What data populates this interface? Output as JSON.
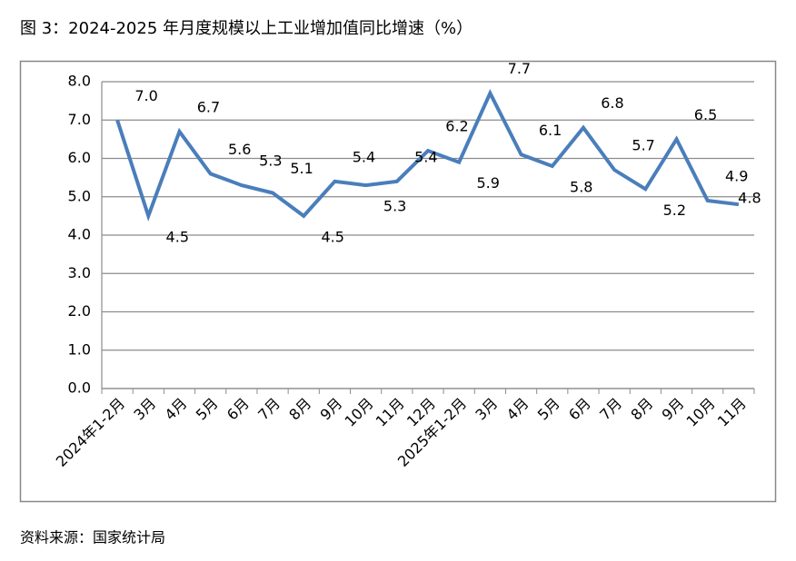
{
  "chart_data": {
    "type": "line",
    "title": "图 3：2024-2025 年月度规模以上工业增加值同比增速（%）",
    "source": "资料来源：国家统计局",
    "categories": [
      "2024年1-2月",
      "3月",
      "4月",
      "5月",
      "6月",
      "7月",
      "8月",
      "9月",
      "10月",
      "11月",
      "12月",
      "2025年1-2月",
      "3月",
      "4月",
      "5月",
      "6月",
      "7月",
      "8月",
      "9月",
      "10月",
      "11月"
    ],
    "values": [
      7.0,
      4.5,
      6.7,
      5.6,
      5.3,
      5.1,
      4.5,
      5.4,
      5.3,
      5.4,
      6.2,
      5.9,
      7.7,
      6.1,
      5.8,
      6.8,
      5.7,
      5.2,
      6.5,
      4.9,
      4.8
    ],
    "value_labels": [
      "7.0",
      "4.5",
      "6.7",
      "5.6",
      "5.3",
      "5.1",
      "4.5",
      "5.4",
      "5.3",
      "5.4",
      "6.2",
      "5.9",
      "7.7",
      "6.1",
      "5.8",
      "6.8",
      "5.7",
      "5.2",
      "6.5",
      "4.9",
      "4.8"
    ],
    "color": "#4a7ebb",
    "ylim": [
      0,
      8
    ],
    "yticks": [
      {
        "value": 0,
        "label": "0.0"
      },
      {
        "value": 1,
        "label": "1.0"
      },
      {
        "value": 2,
        "label": "2.0"
      },
      {
        "value": 3,
        "label": "3.0"
      },
      {
        "value": 4,
        "label": "4.0"
      },
      {
        "value": 5,
        "label": "5.0"
      },
      {
        "value": 6,
        "label": "6.0"
      },
      {
        "value": 7,
        "label": "7.0"
      },
      {
        "value": 8,
        "label": "8.0"
      }
    ],
    "grid": true
  }
}
